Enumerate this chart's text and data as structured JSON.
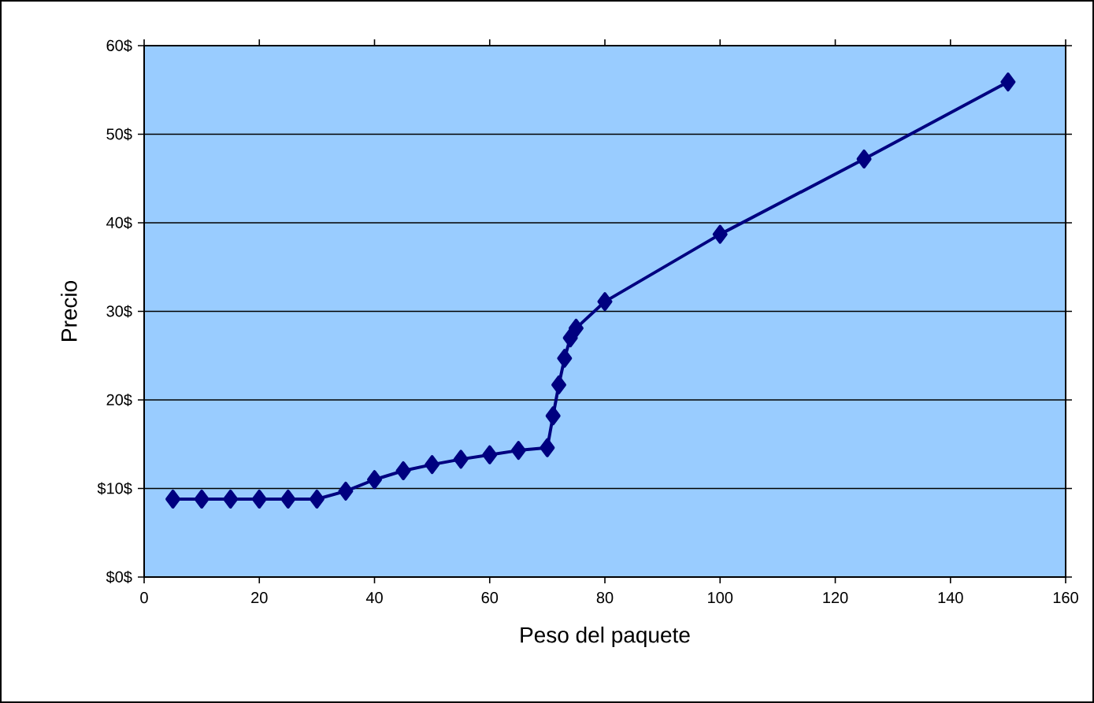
{
  "chart_data": {
    "type": "line",
    "xlabel": "Peso del paquete",
    "ylabel": "Precio",
    "x": [
      5,
      10,
      15,
      20,
      25,
      30,
      35,
      40,
      45,
      50,
      55,
      60,
      65,
      70,
      71,
      72,
      73,
      74,
      75,
      80,
      100,
      125,
      150
    ],
    "series": [
      {
        "color": "#000080",
        "values": [
          8.8,
          8.8,
          8.8,
          8.8,
          8.8,
          8.8,
          9.7,
          11.0,
          12.0,
          12.7,
          13.3,
          13.8,
          14.3,
          14.6,
          18.2,
          21.7,
          24.7,
          27.0,
          28.1,
          31.1,
          38.7,
          47.2,
          55.9
        ]
      }
    ],
    "xlim": [
      0,
      160
    ],
    "xticks": [
      0,
      20,
      40,
      60,
      80,
      100,
      120,
      140,
      160
    ],
    "ylim": [
      0,
      60
    ],
    "yticks": [
      {
        "value": 0,
        "label": "$0$"
      },
      {
        "value": 10,
        "label": "$10$"
      },
      {
        "value": 20,
        "label": "20$"
      },
      {
        "value": 30,
        "label": "30$"
      },
      {
        "value": 40,
        "label": "40$"
      },
      {
        "value": 50,
        "label": "50$"
      },
      {
        "value": 60,
        "label": "60$"
      }
    ],
    "grid": "y",
    "marker": "diamond",
    "line_style": "solid"
  }
}
